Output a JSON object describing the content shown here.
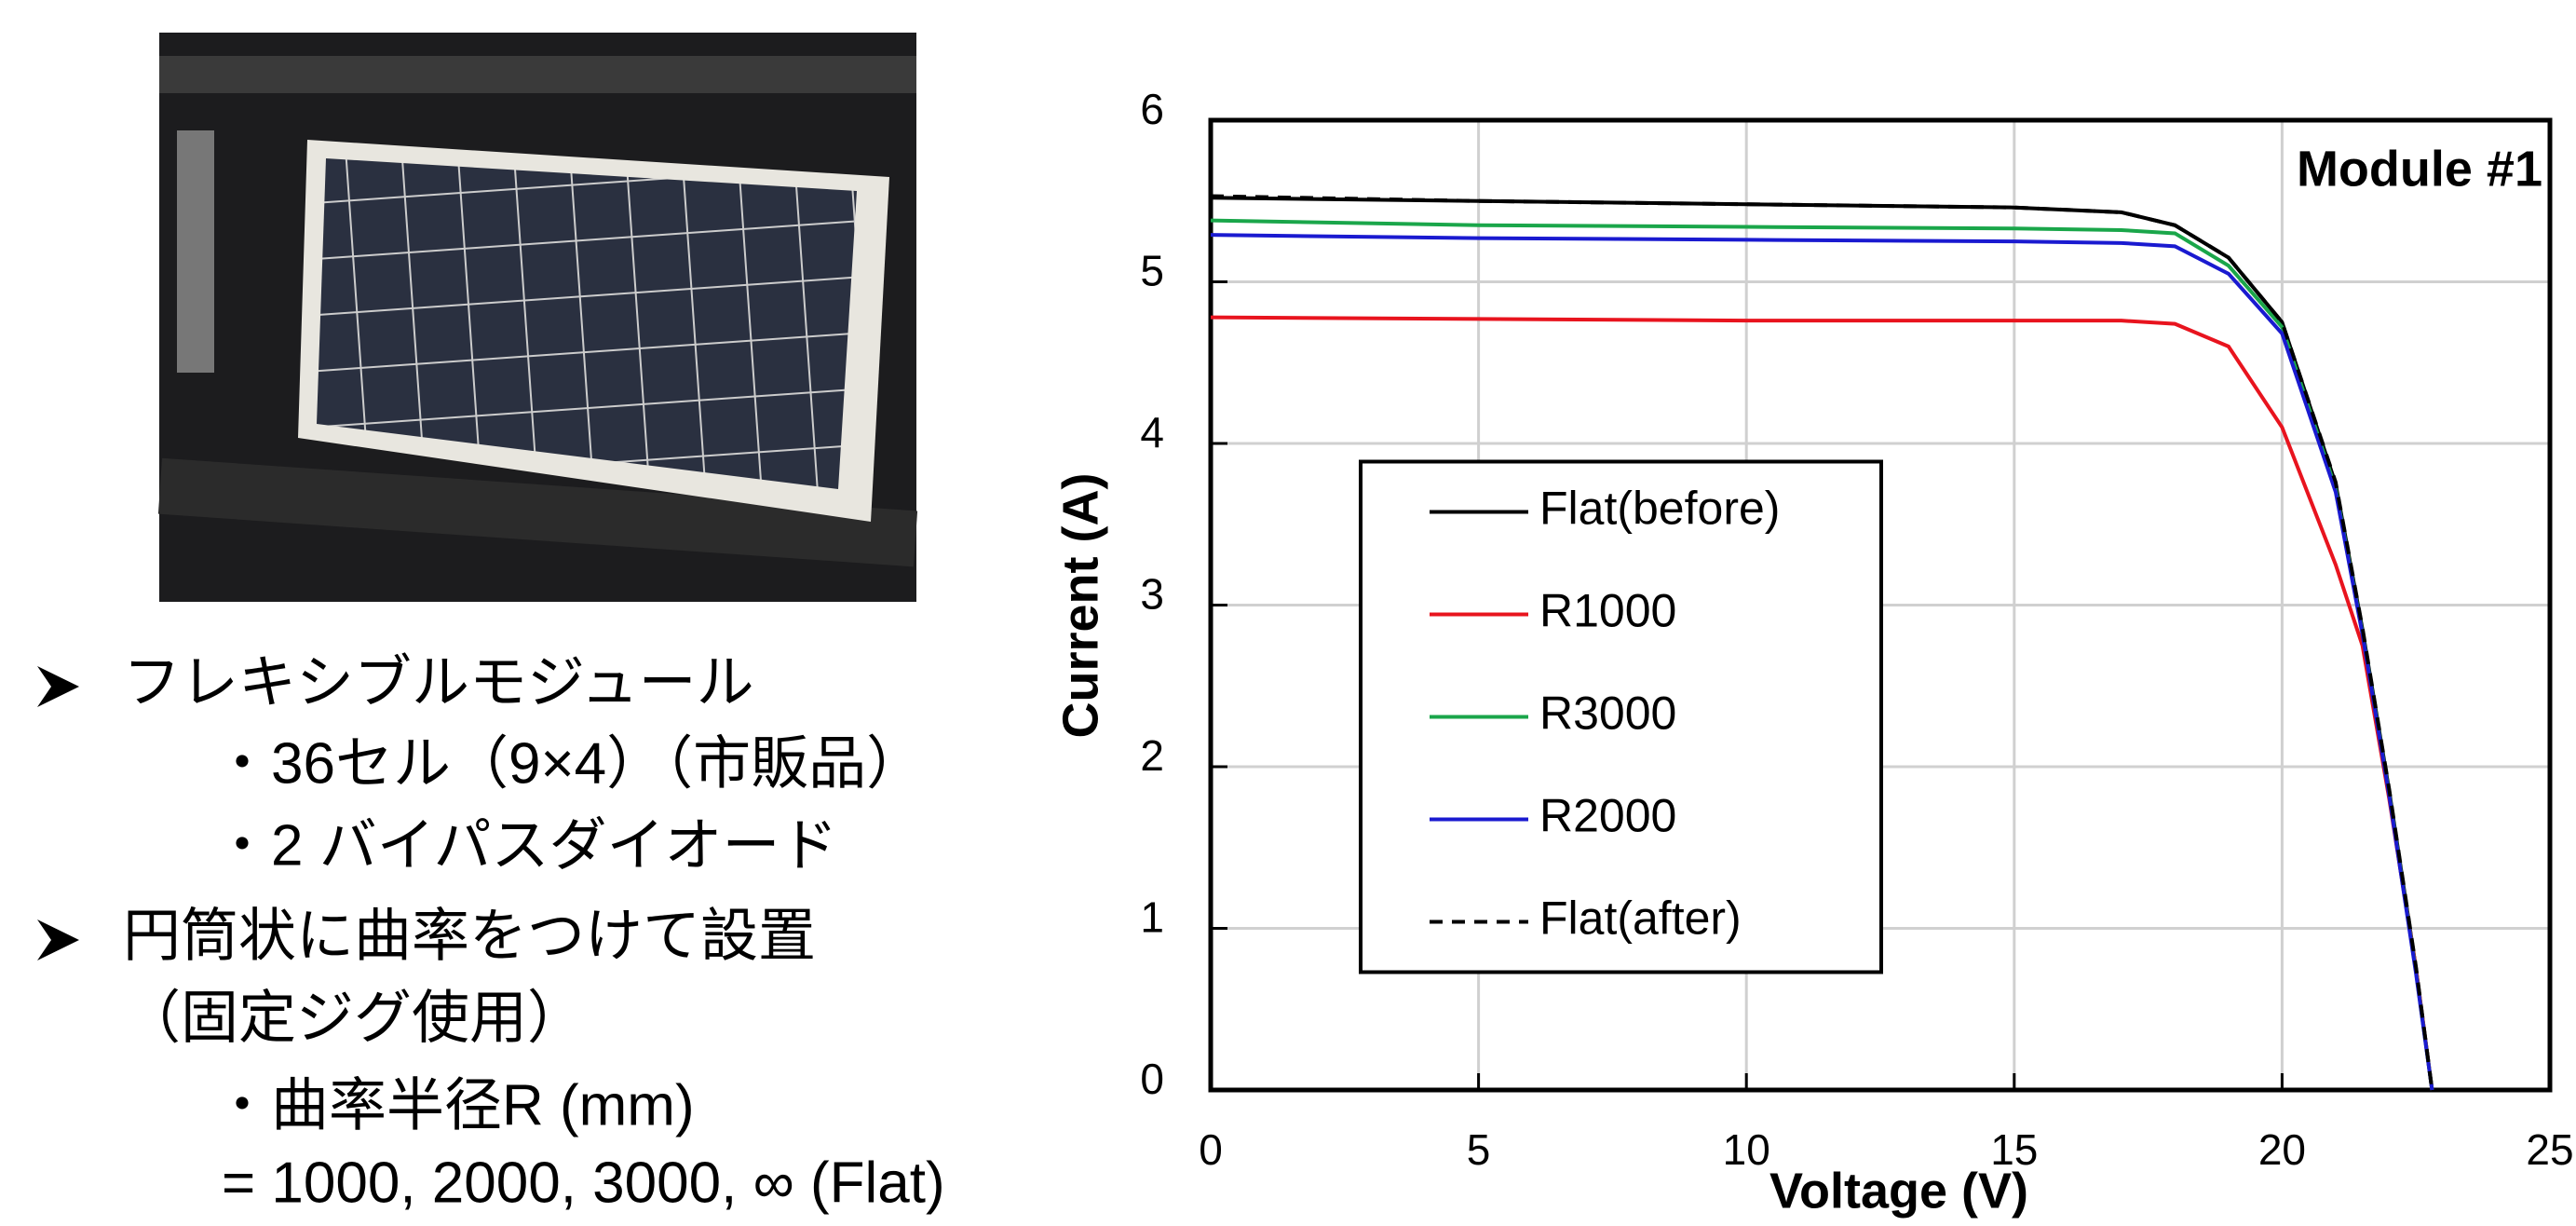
{
  "chart_data": {
    "type": "line",
    "title": "Module #1",
    "x_label": "Voltage (V)",
    "y_label": "Current (A)",
    "x": [
      0,
      5,
      10,
      15,
      17,
      18,
      19,
      20,
      21,
      21.5,
      22,
      22.5,
      22.8
    ],
    "series": [
      {
        "name": "Flat(before)",
        "color": "#000000",
        "dash": false,
        "values": [
          5.52,
          5.5,
          5.48,
          5.46,
          5.43,
          5.35,
          5.15,
          4.75,
          3.75,
          2.85,
          1.85,
          0.75,
          0
        ]
      },
      {
        "name": "R1000",
        "color": "#e8141e",
        "dash": false,
        "values": [
          4.78,
          4.77,
          4.76,
          4.76,
          4.76,
          4.74,
          4.6,
          4.1,
          3.25,
          2.75,
          1.8,
          0.75,
          0
        ]
      },
      {
        "name": "R3000",
        "color": "#1aa64a",
        "dash": false,
        "values": [
          5.38,
          5.35,
          5.34,
          5.33,
          5.32,
          5.3,
          5.1,
          4.72,
          3.72,
          2.83,
          1.83,
          0.73,
          0
        ]
      },
      {
        "name": "R2000",
        "color": "#1a1ad0",
        "dash": false,
        "values": [
          5.29,
          5.27,
          5.26,
          5.25,
          5.24,
          5.22,
          5.05,
          4.68,
          3.7,
          2.82,
          1.82,
          0.72,
          0
        ]
      },
      {
        "name": "Flat(after)",
        "color": "#000000",
        "dash": true,
        "values": [
          5.53,
          5.5,
          5.48,
          5.46,
          5.43,
          5.35,
          5.15,
          4.75,
          3.76,
          2.86,
          1.86,
          0.76,
          0
        ]
      }
    ],
    "xlim": [
      0,
      25
    ],
    "ylim": [
      0,
      6
    ],
    "xticks": [
      0,
      5,
      10,
      15,
      20,
      25
    ],
    "yticks": [
      0,
      1,
      2,
      3,
      4,
      5,
      6
    ],
    "grid": true,
    "legend_position": "center left"
  },
  "bullets": [
    "フレキシブルモジュール",
    "・36セル（9×4）（市販品）",
    "・2 バイパスダイオード",
    "円筒状に曲率をつけて設置",
    "（固定ジグ使用）",
    "・曲率半径R (mm)",
    "=  1000, 2000, 3000, ∞ (Flat)"
  ]
}
